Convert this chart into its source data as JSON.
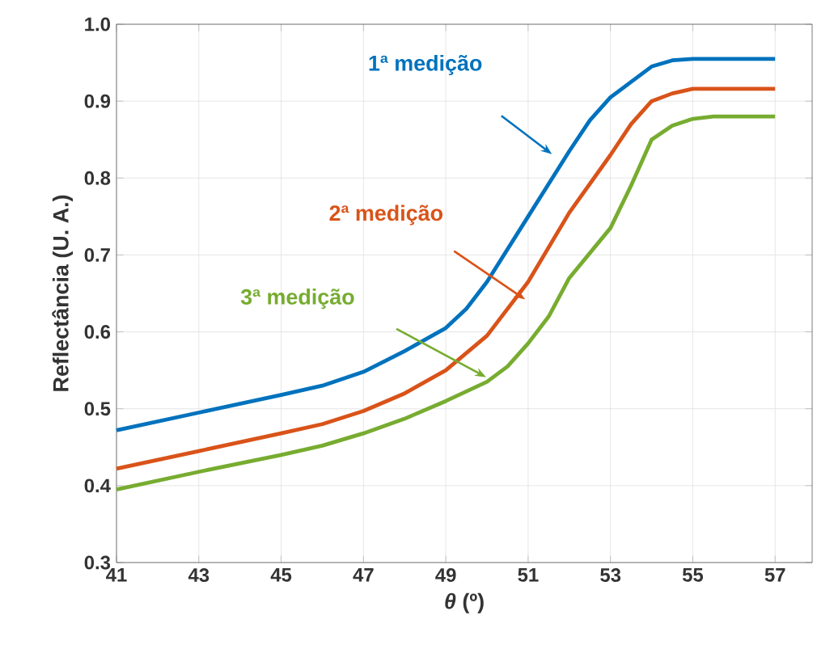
{
  "chart_data": {
    "type": "line",
    "xlabel": "*θ* (º)",
    "ylabel": "Reflectância (U. A.)",
    "xlim": [
      41,
      57.9
    ],
    "ylim": [
      0.3,
      1.0
    ],
    "xticks": [
      41,
      43,
      45,
      47,
      49,
      51,
      53,
      55,
      57
    ],
    "yticks": [
      0.3,
      0.4,
      0.5,
      0.6,
      0.7,
      0.8,
      0.9,
      {
        "value": 1.0,
        "label": "1.0"
      }
    ],
    "grid": true,
    "marker": "none",
    "line_style": "solid",
    "series": [
      {
        "name": "1ª medição",
        "color": "#0072bd",
        "x": [
          41,
          43,
          45,
          46,
          47,
          48,
          49,
          49.5,
          50,
          51,
          52,
          52.5,
          53,
          53.5,
          54,
          54.5,
          55,
          57
        ],
        "values": [
          0.472,
          0.495,
          0.518,
          0.53,
          0.548,
          0.575,
          0.605,
          0.63,
          0.665,
          0.75,
          0.835,
          0.875,
          0.905,
          0.925,
          0.945,
          0.953,
          0.955,
          0.955
        ]
      },
      {
        "name": "2ª medição",
        "color": "#d95319",
        "x": [
          41,
          43,
          45,
          46,
          47,
          48,
          49,
          50,
          51,
          52,
          53,
          53.5,
          54,
          54.5,
          55,
          57
        ],
        "values": [
          0.422,
          0.445,
          0.468,
          0.48,
          0.497,
          0.52,
          0.55,
          0.595,
          0.665,
          0.755,
          0.83,
          0.87,
          0.9,
          0.91,
          0.916,
          0.916
        ]
      },
      {
        "name": "3ª medição",
        "color": "#77ac30",
        "x": [
          41,
          43,
          45,
          46,
          47,
          48,
          49,
          50,
          50.5,
          51,
          51.5,
          52,
          53,
          53.5,
          54,
          54.5,
          55,
          55.5,
          57
        ],
        "values": [
          0.395,
          0.418,
          0.44,
          0.452,
          0.468,
          0.487,
          0.51,
          0.535,
          0.555,
          0.585,
          0.62,
          0.67,
          0.735,
          0.79,
          0.85,
          0.868,
          0.877,
          0.88,
          0.88
        ]
      }
    ]
  }
}
